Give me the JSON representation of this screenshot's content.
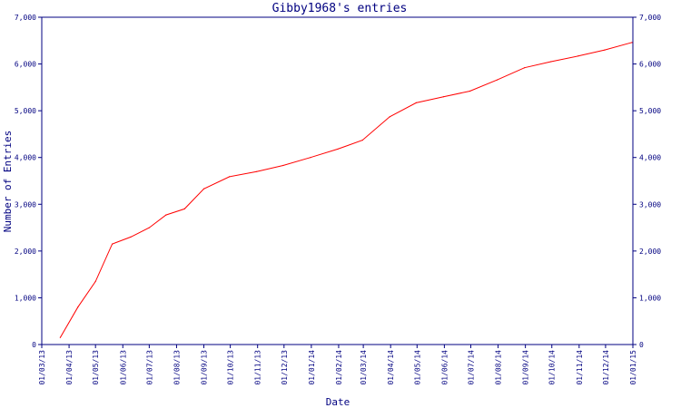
{
  "chart_data": {
    "type": "line",
    "title": "Gibby1968's entries",
    "xlabel": "Date",
    "ylabel": "Number of Entries",
    "x_ticks": [
      "01/03/13",
      "01/04/13",
      "01/05/13",
      "01/06/13",
      "01/07/13",
      "01/08/13",
      "01/09/13",
      "01/10/13",
      "01/11/13",
      "01/12/13",
      "01/01/14",
      "01/02/14",
      "01/03/14",
      "01/04/14",
      "01/05/14",
      "01/06/14",
      "01/07/14",
      "01/08/14",
      "01/09/14",
      "01/10/14",
      "01/11/14",
      "01/12/14",
      "01/01/15"
    ],
    "y_ticks": [
      "0",
      "1,000",
      "2,000",
      "3,000",
      "4,000",
      "5,000",
      "6,000",
      "7,000"
    ],
    "ylim": [
      0,
      7000
    ],
    "xlim": [
      "2013-03-01",
      "2015-01-01"
    ],
    "grid": false,
    "colors": {
      "axis": "#000080",
      "line": "#ff0000",
      "background": "#ffffff"
    },
    "series": [
      {
        "x": [
          "2013-03-22",
          "2013-04-11",
          "2013-05-01",
          "2013-05-20",
          "2013-06-10",
          "2013-07-01",
          "2013-07-20",
          "2013-08-10",
          "2013-09-01",
          "2013-09-30",
          "2013-10-31",
          "2013-11-30",
          "2013-12-31",
          "2014-01-31",
          "2014-02-28",
          "2014-03-31",
          "2014-04-30",
          "2014-05-31",
          "2014-06-30",
          "2014-07-31",
          "2014-08-31",
          "2014-09-30",
          "2014-10-31",
          "2014-11-30",
          "2014-12-31"
        ],
        "values": [
          150,
          800,
          1350,
          2150,
          2300,
          2500,
          2770,
          2900,
          3330,
          3590,
          3700,
          3830,
          4000,
          4180,
          4370,
          4870,
          5170,
          5300,
          5420,
          5660,
          5920,
          6050,
          6170,
          6300,
          6460
        ]
      }
    ]
  }
}
